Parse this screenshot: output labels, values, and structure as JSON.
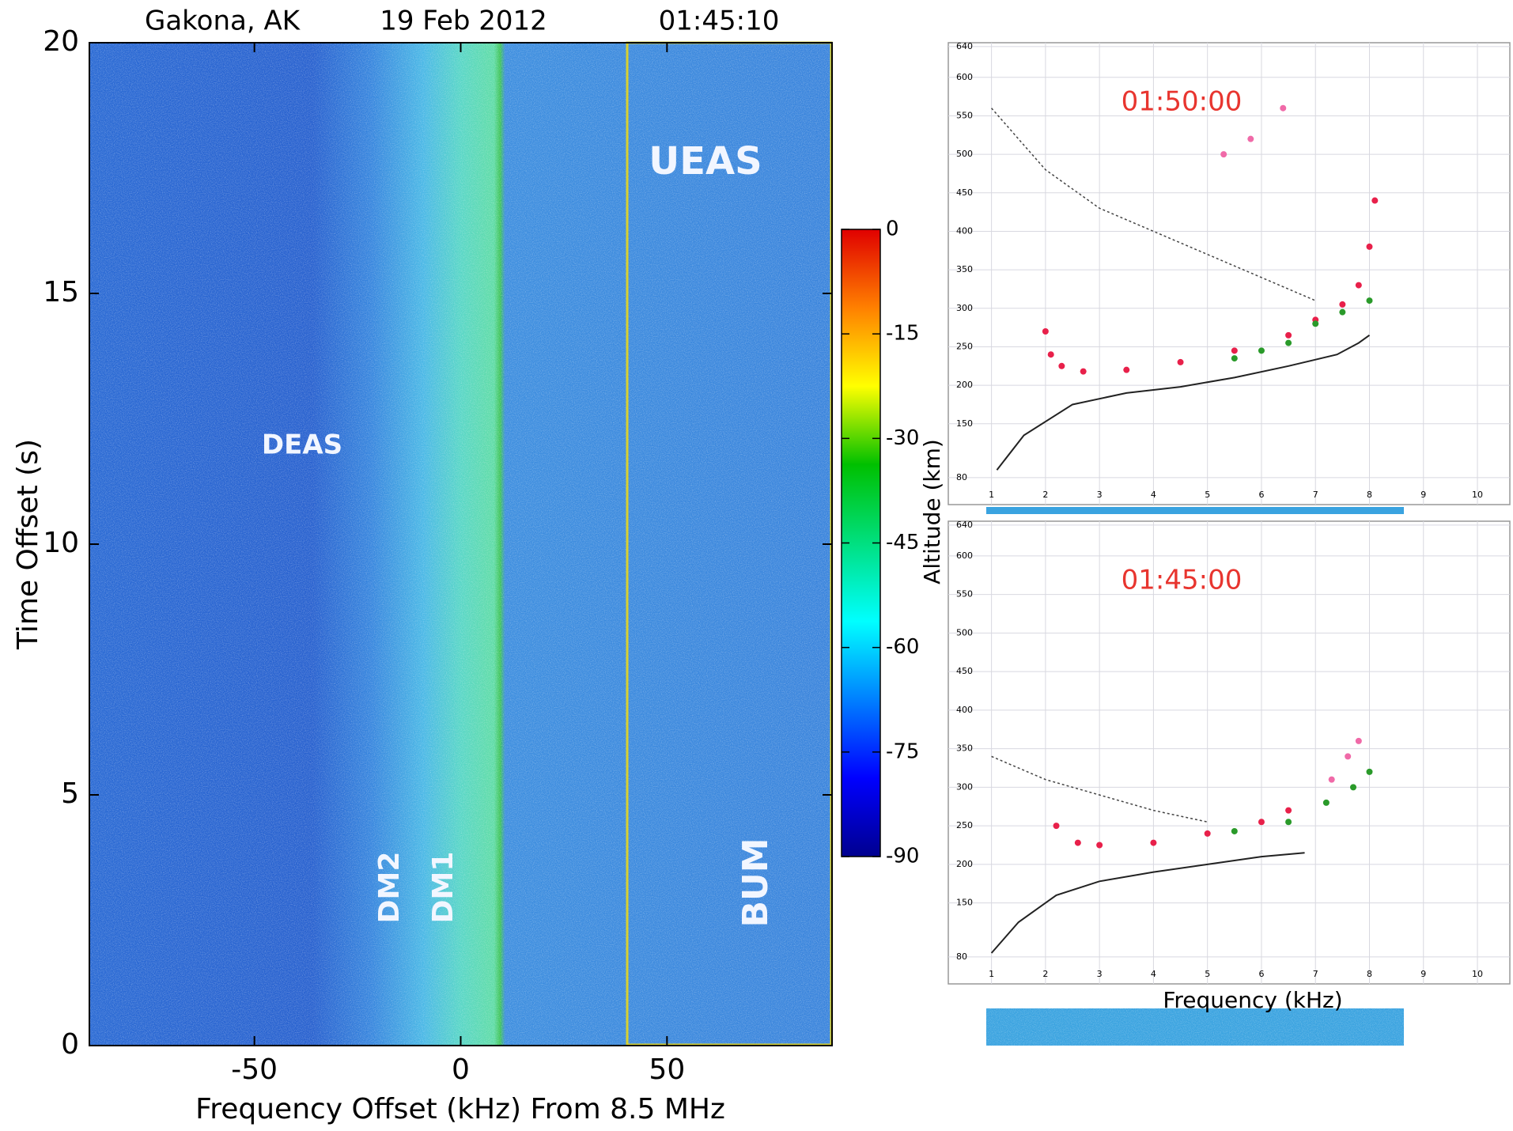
{
  "chart_data": [
    {
      "type": "heatmap",
      "title": [
        "Gakona, AK",
        "19 Feb 2012",
        "01:45:10"
      ],
      "xlabel": "Frequency Offset (kHz) From 8.5 MHz",
      "ylabel": "Time Offset (s)",
      "xlim": [
        -90,
        90
      ],
      "xticks": [
        -50,
        0,
        50
      ],
      "ylim": [
        0,
        20
      ],
      "yticks": [
        0,
        5,
        10,
        15,
        20
      ],
      "annotations": [
        "DEAS",
        "UEAS",
        "DM2",
        "DM1",
        "BUM"
      ],
      "colorbar": {
        "lim": [
          -90,
          0
        ],
        "ticks": [
          0,
          -15,
          -30,
          -45,
          -60,
          -75,
          -90
        ]
      }
    },
    {
      "type": "scatter",
      "title": "01:50:00",
      "title_color": "#e8352f",
      "ylabel": "Altitude (km)",
      "xlim": [
        0.2,
        10.6
      ],
      "xticks": [
        1,
        2,
        3,
        4,
        5,
        6,
        7,
        8,
        9,
        10
      ],
      "ylim": [
        45,
        645
      ],
      "yticks": [
        80,
        150,
        200,
        250,
        300,
        350,
        400,
        450,
        500,
        550,
        600,
        640
      ],
      "grid": true,
      "series": [
        {
          "color": "#e8204a",
          "style": "points",
          "x": [
            2.0,
            2.1,
            2.3,
            2.7,
            3.5,
            4.5,
            5.5,
            6.5,
            7.0,
            7.5,
            7.8,
            8.0,
            8.1
          ],
          "values": [
            270,
            240,
            225,
            218,
            220,
            230,
            245,
            265,
            285,
            305,
            330,
            380,
            440
          ]
        },
        {
          "color": "#2a9a2a",
          "style": "points",
          "x": [
            5.5,
            6.0,
            6.5,
            7.0,
            7.5,
            8.0
          ],
          "values": [
            235,
            245,
            255,
            280,
            295,
            310
          ]
        },
        {
          "color": "#f06aa8",
          "style": "points",
          "x": [
            5.3,
            5.8,
            6.4
          ],
          "values": [
            500,
            520,
            560
          ]
        },
        {
          "color": "#222222",
          "style": "line",
          "x": [
            1.1,
            1.6,
            2.5,
            3.5,
            4.5,
            5.5,
            6.5,
            7.4,
            7.8,
            8.0
          ],
          "values": [
            90,
            135,
            175,
            190,
            198,
            210,
            225,
            240,
            255,
            265
          ]
        },
        {
          "color": "#444444",
          "style": "dashed",
          "x": [
            1,
            1.5,
            2,
            3,
            4,
            5,
            6,
            7
          ],
          "values": [
            560,
            520,
            480,
            430,
            400,
            370,
            340,
            310
          ]
        }
      ]
    },
    {
      "type": "scatter",
      "title": "01:45:00",
      "title_color": "#e8352f",
      "xlabel": "Frequency (kHz)",
      "xlim": [
        0.2,
        10.6
      ],
      "xticks": [
        1,
        2,
        3,
        4,
        5,
        6,
        7,
        8,
        9,
        10
      ],
      "ylim": [
        45,
        645
      ],
      "yticks": [
        80,
        150,
        200,
        250,
        300,
        350,
        400,
        450,
        500,
        550,
        600,
        640
      ],
      "grid": true,
      "series": [
        {
          "color": "#e8204a",
          "style": "points",
          "x": [
            2.2,
            2.6,
            3.0,
            4.0,
            5.0,
            6.0,
            6.5
          ],
          "values": [
            250,
            228,
            225,
            228,
            240,
            255,
            270
          ]
        },
        {
          "color": "#2a9a2a",
          "style": "points",
          "x": [
            5.5,
            6.5,
            7.2,
            7.7,
            8.0
          ],
          "values": [
            243,
            255,
            280,
            300,
            320
          ]
        },
        {
          "color": "#f06aa8",
          "style": "points",
          "x": [
            7.3,
            7.6,
            7.8
          ],
          "values": [
            310,
            340,
            360
          ]
        },
        {
          "color": "#222222",
          "style": "line",
          "x": [
            1,
            1.5,
            2.2,
            3,
            4,
            5,
            6,
            6.8
          ],
          "values": [
            85,
            125,
            160,
            178,
            190,
            200,
            210,
            215
          ]
        },
        {
          "color": "#444444",
          "style": "dashed",
          "x": [
            1,
            2,
            3,
            4,
            5
          ],
          "values": [
            340,
            310,
            290,
            270,
            255
          ]
        }
      ]
    }
  ]
}
